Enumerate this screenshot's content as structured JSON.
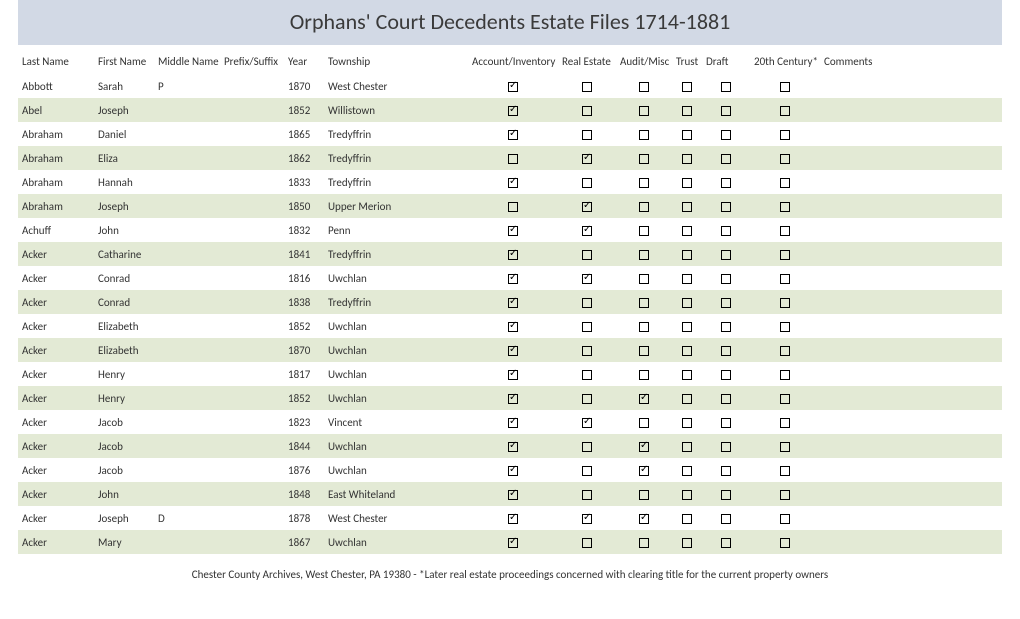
{
  "title": "Orphans' Court Decedents Estate Files 1714-1881",
  "columns": {
    "last": "Last Name",
    "first": "First Name",
    "middle": "Middle Name",
    "prefix": "Prefix/Suffix",
    "year": "Year",
    "township": "Township",
    "account": "Account/Inventory",
    "realestate": "Real Estate",
    "audit": "Audit/Misc",
    "trust": "Trust",
    "draft": "Draft",
    "century": "20th Century*",
    "comments": "Comments"
  },
  "rows": [
    {
      "last": "Abbott",
      "first": "Sarah",
      "middle": "P",
      "prefix": "",
      "year": "1870",
      "township": "West Chester",
      "account": true,
      "realestate": false,
      "audit": false,
      "trust": false,
      "draft": false,
      "century": false,
      "comments": ""
    },
    {
      "last": "Abel",
      "first": "Joseph",
      "middle": "",
      "prefix": "",
      "year": "1852",
      "township": "Willistown",
      "account": true,
      "realestate": false,
      "audit": false,
      "trust": false,
      "draft": false,
      "century": false,
      "comments": ""
    },
    {
      "last": "Abraham",
      "first": "Daniel",
      "middle": "",
      "prefix": "",
      "year": "1865",
      "township": "Tredyffrin",
      "account": true,
      "realestate": false,
      "audit": false,
      "trust": false,
      "draft": false,
      "century": false,
      "comments": ""
    },
    {
      "last": "Abraham",
      "first": "Eliza",
      "middle": "",
      "prefix": "",
      "year": "1862",
      "township": "Tredyffrin",
      "account": false,
      "realestate": true,
      "audit": false,
      "trust": false,
      "draft": false,
      "century": false,
      "comments": ""
    },
    {
      "last": "Abraham",
      "first": "Hannah",
      "middle": "",
      "prefix": "",
      "year": "1833",
      "township": "Tredyffrin",
      "account": true,
      "realestate": false,
      "audit": false,
      "trust": false,
      "draft": false,
      "century": false,
      "comments": ""
    },
    {
      "last": "Abraham",
      "first": "Joseph",
      "middle": "",
      "prefix": "",
      "year": "1850",
      "township": "Upper Merion",
      "account": false,
      "realestate": true,
      "audit": false,
      "trust": false,
      "draft": false,
      "century": false,
      "comments": ""
    },
    {
      "last": "Achuff",
      "first": "John",
      "middle": "",
      "prefix": "",
      "year": "1832",
      "township": "Penn",
      "account": true,
      "realestate": true,
      "audit": false,
      "trust": false,
      "draft": false,
      "century": false,
      "comments": ""
    },
    {
      "last": "Acker",
      "first": "Catharine",
      "middle": "",
      "prefix": "",
      "year": "1841",
      "township": "Tredyffrin",
      "account": true,
      "realestate": false,
      "audit": false,
      "trust": false,
      "draft": false,
      "century": false,
      "comments": ""
    },
    {
      "last": "Acker",
      "first": "Conrad",
      "middle": "",
      "prefix": "",
      "year": "1816",
      "township": "Uwchlan",
      "account": true,
      "realestate": true,
      "audit": false,
      "trust": false,
      "draft": false,
      "century": false,
      "comments": ""
    },
    {
      "last": "Acker",
      "first": "Conrad",
      "middle": "",
      "prefix": "",
      "year": "1838",
      "township": "Tredyffrin",
      "account": true,
      "realestate": false,
      "audit": false,
      "trust": false,
      "draft": false,
      "century": false,
      "comments": ""
    },
    {
      "last": "Acker",
      "first": "Elizabeth",
      "middle": "",
      "prefix": "",
      "year": "1852",
      "township": "Uwchlan",
      "account": true,
      "realestate": false,
      "audit": false,
      "trust": false,
      "draft": false,
      "century": false,
      "comments": ""
    },
    {
      "last": "Acker",
      "first": "Elizabeth",
      "middle": "",
      "prefix": "",
      "year": "1870",
      "township": "Uwchlan",
      "account": true,
      "realestate": false,
      "audit": false,
      "trust": false,
      "draft": false,
      "century": false,
      "comments": ""
    },
    {
      "last": "Acker",
      "first": "Henry",
      "middle": "",
      "prefix": "",
      "year": "1817",
      "township": "Uwchlan",
      "account": true,
      "realestate": false,
      "audit": false,
      "trust": false,
      "draft": false,
      "century": false,
      "comments": ""
    },
    {
      "last": "Acker",
      "first": "Henry",
      "middle": "",
      "prefix": "",
      "year": "1852",
      "township": "Uwchlan",
      "account": true,
      "realestate": false,
      "audit": true,
      "trust": false,
      "draft": false,
      "century": false,
      "comments": ""
    },
    {
      "last": "Acker",
      "first": "Jacob",
      "middle": "",
      "prefix": "",
      "year": "1823",
      "township": "Vincent",
      "account": true,
      "realestate": true,
      "audit": false,
      "trust": false,
      "draft": false,
      "century": false,
      "comments": ""
    },
    {
      "last": "Acker",
      "first": "Jacob",
      "middle": "",
      "prefix": "",
      "year": "1844",
      "township": "Uwchlan",
      "account": true,
      "realestate": false,
      "audit": true,
      "trust": false,
      "draft": false,
      "century": false,
      "comments": ""
    },
    {
      "last": "Acker",
      "first": "Jacob",
      "middle": "",
      "prefix": "",
      "year": "1876",
      "township": "Uwchlan",
      "account": true,
      "realestate": false,
      "audit": true,
      "trust": false,
      "draft": false,
      "century": false,
      "comments": ""
    },
    {
      "last": "Acker",
      "first": "John",
      "middle": "",
      "prefix": "",
      "year": "1848",
      "township": "East Whiteland",
      "account": true,
      "realestate": false,
      "audit": false,
      "trust": false,
      "draft": false,
      "century": false,
      "comments": ""
    },
    {
      "last": "Acker",
      "first": "Joseph",
      "middle": "D",
      "prefix": "",
      "year": "1878",
      "township": "West Chester",
      "account": true,
      "realestate": true,
      "audit": true,
      "trust": false,
      "draft": false,
      "century": false,
      "comments": ""
    },
    {
      "last": "Acker",
      "first": "Mary",
      "middle": "",
      "prefix": "",
      "year": "1867",
      "township": "Uwchlan",
      "account": true,
      "realestate": false,
      "audit": false,
      "trust": false,
      "draft": false,
      "century": false,
      "comments": ""
    }
  ],
  "footer": "Chester County Archives, West Chester, PA 19380 - *Later real estate proceedings concerned with clearing title for the current property owners"
}
